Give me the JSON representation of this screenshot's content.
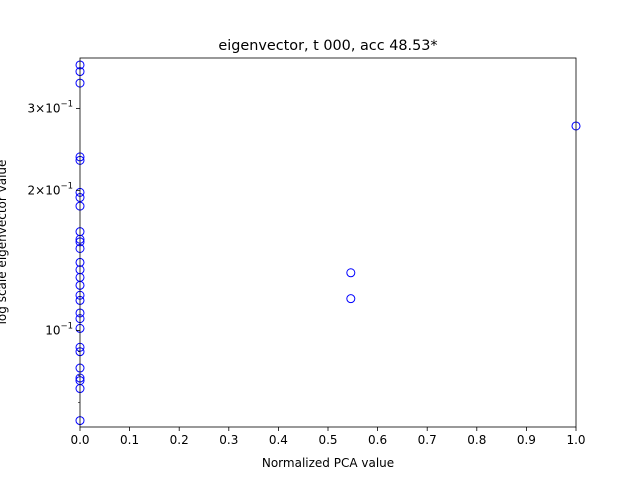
{
  "chart_data": {
    "type": "scatter",
    "title": "eigenvector, t 000, acc 48.53*",
    "xlabel": "Normalized PCA value",
    "ylabel": "log scale eigenvector value",
    "xlim": [
      0.0,
      1.0
    ],
    "ylim": [
      0.062,
      0.385
    ],
    "yscale": "log",
    "x_ticks": [
      0.0,
      0.1,
      0.2,
      0.3,
      0.4,
      0.5,
      0.6,
      0.7,
      0.8,
      0.9,
      1.0
    ],
    "x_tick_labels": [
      "0.0",
      "0.1",
      "0.2",
      "0.3",
      "0.4",
      "0.5",
      "0.6",
      "0.7",
      "0.8",
      "0.9",
      "1.0"
    ],
    "y_ticks": [
      {
        "value": 0.3,
        "mantissa": "3",
        "exponent": "−1"
      },
      {
        "value": 0.2,
        "mantissa": "2",
        "exponent": "−1"
      },
      {
        "value": 0.1,
        "mantissa": "",
        "exponent": "−1"
      }
    ],
    "marker_color": "#0000ff",
    "series": [
      {
        "name": "eigenvector",
        "points": [
          {
            "x": 0.0,
            "y": 0.372
          },
          {
            "x": 0.0,
            "y": 0.36
          },
          {
            "x": 0.0,
            "y": 0.34
          },
          {
            "x": 0.0,
            "y": 0.236
          },
          {
            "x": 0.0,
            "y": 0.232
          },
          {
            "x": 0.0,
            "y": 0.198
          },
          {
            "x": 0.0,
            "y": 0.193
          },
          {
            "x": 0.0,
            "y": 0.185
          },
          {
            "x": 0.0,
            "y": 0.163
          },
          {
            "x": 0.0,
            "y": 0.157
          },
          {
            "x": 0.0,
            "y": 0.155
          },
          {
            "x": 0.0,
            "y": 0.15
          },
          {
            "x": 0.0,
            "y": 0.14
          },
          {
            "x": 0.0,
            "y": 0.135
          },
          {
            "x": 0.0,
            "y": 0.13
          },
          {
            "x": 0.0,
            "y": 0.125
          },
          {
            "x": 0.0,
            "y": 0.119
          },
          {
            "x": 0.0,
            "y": 0.116
          },
          {
            "x": 0.0,
            "y": 0.109
          },
          {
            "x": 0.0,
            "y": 0.106
          },
          {
            "x": 0.0,
            "y": 0.101
          },
          {
            "x": 0.0,
            "y": 0.092
          },
          {
            "x": 0.0,
            "y": 0.09
          },
          {
            "x": 0.0,
            "y": 0.083
          },
          {
            "x": 0.0,
            "y": 0.079
          },
          {
            "x": 0.0,
            "y": 0.078
          },
          {
            "x": 0.0,
            "y": 0.075
          },
          {
            "x": 0.0,
            "y": 0.064
          },
          {
            "x": 0.546,
            "y": 0.133
          },
          {
            "x": 0.546,
            "y": 0.117
          },
          {
            "x": 1.0,
            "y": 0.275
          }
        ]
      }
    ]
  }
}
